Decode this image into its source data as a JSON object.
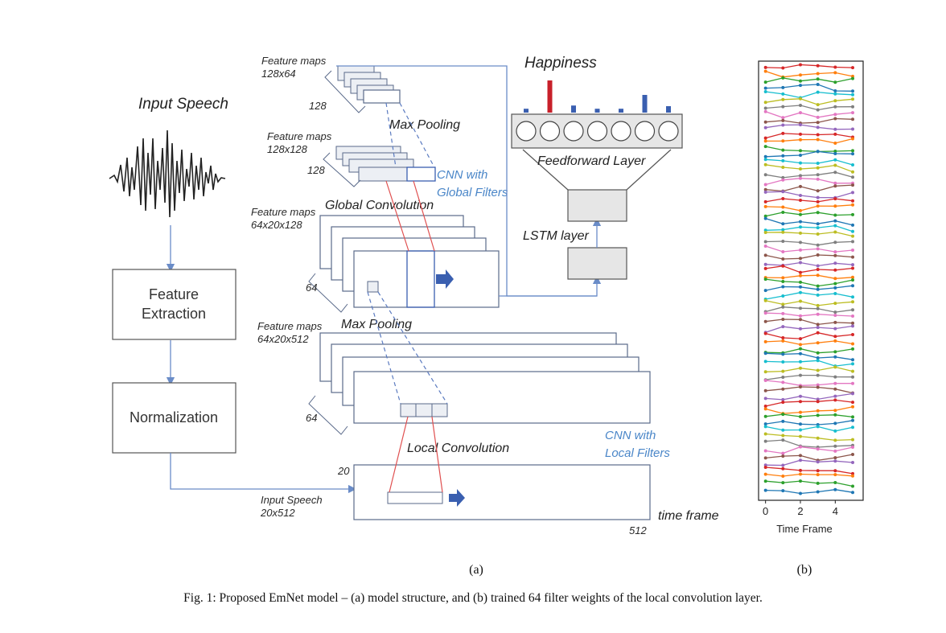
{
  "diagram": {
    "input_speech_title": "Input Speech",
    "feature_extraction": [
      "Feature",
      "Extraction"
    ],
    "normalization": "Normalization",
    "fm1_label": [
      "Feature maps",
      "128x64"
    ],
    "fm1_depth": "128",
    "max_pooling_top": "Max Pooling",
    "fm2_label": [
      "Feature maps",
      "128x128"
    ],
    "fm2_depth": "128",
    "cnn_global": [
      "CNN with",
      "Global Filters"
    ],
    "global_convolution": "Global Convolution",
    "fm3_label": [
      "Feature maps",
      "64x20x128"
    ],
    "fm3_depth": "64",
    "max_pooling_mid": "Max Pooling",
    "fm4_label": [
      "Feature maps",
      "64x20x512"
    ],
    "fm4_depth": "64",
    "cnn_local": [
      "CNN with",
      "Local Filters"
    ],
    "local_convolution": "Local Convolution",
    "input_dim_20": "20",
    "input_speech_label": [
      "Input Speech",
      "20x512"
    ],
    "time_frame": "time frame",
    "dim_512": "512",
    "happiness": "Happiness",
    "feedforward_layer": "Feedforward Layer",
    "lstm_layer": "LSTM layer",
    "output_bars": [
      0.12,
      1.0,
      0.22,
      0.12,
      0.12,
      0.55,
      0.2
    ],
    "highlight_bar_index": 1,
    "bar_color": "#3a5fb0",
    "highlight_color": "#c8202a",
    "panel_a_label": "(a)",
    "panel_b_label": "(b)",
    "caption": "Fig. 1: Proposed EmNet model – (a) model structure, and (b) trained 64 filter weights of the local convolution layer."
  },
  "chart_data": {
    "type": "line",
    "xlabel": "Time Frame",
    "x_ticks": [
      "0",
      "2",
      "4"
    ],
    "x": [
      0,
      1,
      2,
      3,
      4,
      5
    ],
    "xlim": [
      -0.4,
      5.6
    ],
    "series_count": 64,
    "palette": [
      "#d62728",
      "#ff7f0e",
      "#2ca02c",
      "#1f77b4",
      "#17becf",
      "#bcbd22",
      "#7f7f7f",
      "#e377c2",
      "#8c564b",
      "#9467bd"
    ]
  }
}
